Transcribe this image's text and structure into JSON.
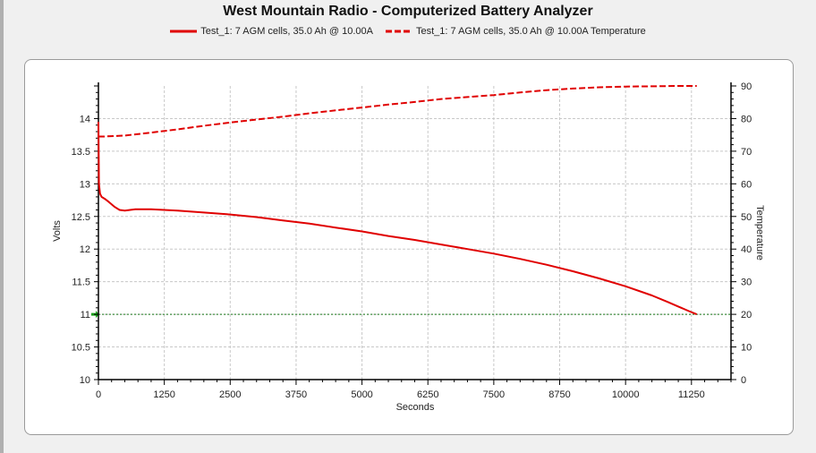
{
  "chart_data": {
    "type": "line",
    "title": "West Mountain Radio - Computerized Battery Analyzer",
    "xlabel": "Seconds",
    "ylabel": "Volts",
    "y2label": "Temperature",
    "xlim": [
      0,
      12000
    ],
    "ylim": [
      10,
      14.5
    ],
    "y2lim": [
      0,
      90
    ],
    "x_ticks": [
      0,
      1250,
      2500,
      3750,
      5000,
      6250,
      7500,
      8750,
      10000,
      11250
    ],
    "y_ticks": [
      10,
      10.5,
      11,
      11.5,
      12,
      12.5,
      13,
      13.5,
      14
    ],
    "y2_ticks": [
      0,
      10,
      20,
      30,
      40,
      50,
      60,
      70,
      80,
      90
    ],
    "grid": true,
    "cutoff_voltage": 11,
    "series": [
      {
        "name": "Test_1: 7 AGM cells, 35.0 Ah @ 10.00A",
        "axis": "left",
        "style": "solid",
        "color": "#e00000",
        "x": [
          0,
          10,
          30,
          60,
          120,
          200,
          300,
          400,
          500,
          700,
          1000,
          1500,
          2000,
          2500,
          3000,
          3500,
          4000,
          4500,
          5000,
          5500,
          6000,
          6500,
          7000,
          7500,
          8000,
          8500,
          9000,
          9500,
          10000,
          10500,
          10800,
          11000,
          11200,
          11350
        ],
        "y": [
          13.95,
          13.0,
          12.85,
          12.8,
          12.77,
          12.72,
          12.65,
          12.6,
          12.59,
          12.61,
          12.61,
          12.59,
          12.56,
          12.53,
          12.49,
          12.44,
          12.39,
          12.33,
          12.27,
          12.2,
          12.14,
          12.07,
          12.0,
          11.93,
          11.85,
          11.76,
          11.66,
          11.55,
          11.43,
          11.29,
          11.19,
          11.12,
          11.05,
          11.0
        ]
      },
      {
        "name": "Test_1: 7 AGM cells, 35.0 Ah @ 10.00A Temperature",
        "axis": "right",
        "style": "dashed",
        "color": "#e00000",
        "x": [
          0,
          30,
          100,
          500,
          1000,
          1500,
          2000,
          2500,
          3000,
          3500,
          4000,
          4500,
          5000,
          5500,
          6000,
          6500,
          7000,
          7500,
          8000,
          8500,
          9000,
          9500,
          10000,
          10500,
          11000,
          11250,
          11350
        ],
        "y": [
          74.5,
          74.5,
          74.5,
          74.8,
          75.7,
          76.7,
          77.8,
          78.8,
          79.7,
          80.6,
          81.6,
          82.5,
          83.4,
          84.3,
          85.1,
          86.0,
          86.6,
          87.2,
          88.0,
          88.7,
          89.2,
          89.6,
          89.8,
          89.9,
          90.0,
          90.0,
          90.0
        ]
      }
    ]
  }
}
